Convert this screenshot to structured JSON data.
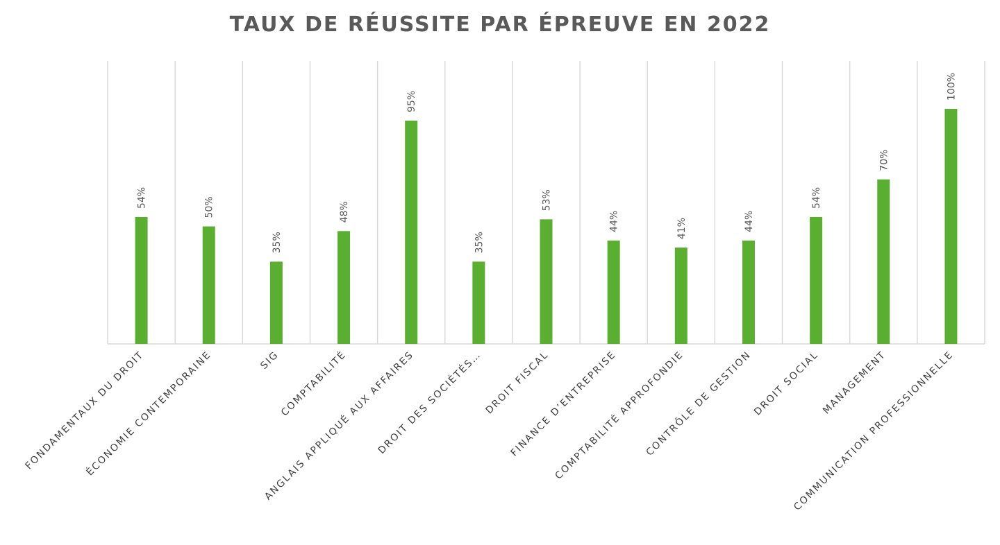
{
  "chart_data": {
    "type": "bar",
    "title": "TAUX DE RÉUSSITE PAR ÉPREUVE EN 2022",
    "xlabel": "",
    "ylabel": "",
    "categories": [
      "FONDAMENTAUX DU DROIT",
      "ÉCONOMIE CONTEMPORAINE",
      "SIG",
      "COMPTABILITÉ",
      "ANGLAIS APPLIQUÉ AUX AFFAIRES",
      "DROIT DES SOCIÉTÉS…",
      "DROIT FISCAL",
      "FINANCE D’ENTREPRISE",
      "COMPTABILITÉ APPROFONDIE",
      "CONTRÔLE DE GESTION",
      "DROIT SOCIAL",
      "MANAGEMENT",
      "COMMUNICATION PROFESSIONNELLE"
    ],
    "values": [
      54,
      50,
      35,
      48,
      95,
      35,
      53,
      44,
      41,
      44,
      54,
      70,
      100
    ],
    "data_labels": [
      "54%",
      "50%",
      "35%",
      "48%",
      "95%",
      "35%",
      "53%",
      "44%",
      "41%",
      "44%",
      "54%",
      "70%",
      "100%"
    ],
    "ylim": [
      0,
      100
    ],
    "value_axis_shown": false,
    "grid": "vertical category separators",
    "legend": "none",
    "bar_color": "#5aaf31",
    "grid_color": "#d9d9d9"
  }
}
